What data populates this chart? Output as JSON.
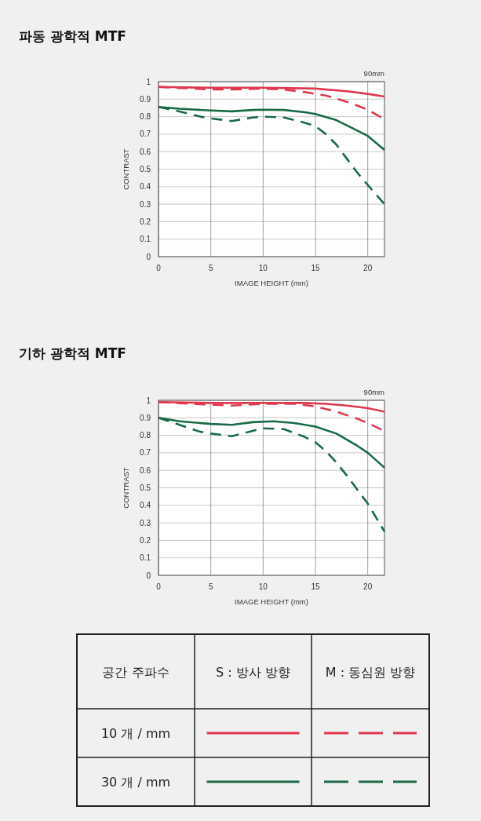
{
  "chart_data": [
    {
      "type": "line",
      "title": "파동 광학적 MTF",
      "subtitle": "90mm",
      "xlabel": "IMAGE HEIGHT (mm)",
      "ylabel": "CONTRAST",
      "xlim": [
        0,
        21.6
      ],
      "ylim": [
        0,
        1
      ],
      "xticks": [
        0,
        5,
        10,
        15,
        20
      ],
      "yticks": [
        0,
        0.1,
        0.2,
        0.3,
        0.4,
        0.5,
        0.6,
        0.7,
        0.8,
        0.9,
        1
      ],
      "grid": true,
      "series": [
        {
          "color": "#e0384f",
          "line_style": "solid",
          "x": [
            0,
            5,
            10,
            15,
            18,
            20,
            21.6
          ],
          "values": [
            0.97,
            0.965,
            0.965,
            0.96,
            0.945,
            0.93,
            0.915
          ]
        },
        {
          "color": "#e0384f",
          "line_style": "dashed",
          "x": [
            0,
            5,
            7,
            10,
            12,
            14,
            16,
            18,
            20,
            21.6
          ],
          "values": [
            0.97,
            0.955,
            0.955,
            0.96,
            0.955,
            0.94,
            0.92,
            0.885,
            0.84,
            0.785
          ]
        },
        {
          "color": "#186b46",
          "line_style": "solid",
          "x": [
            0,
            2,
            5,
            7,
            9,
            10,
            12,
            14,
            15,
            17,
            19,
            20,
            21.6
          ],
          "values": [
            0.855,
            0.845,
            0.835,
            0.83,
            0.838,
            0.84,
            0.838,
            0.825,
            0.815,
            0.78,
            0.72,
            0.69,
            0.61
          ]
        },
        {
          "color": "#186b46",
          "line_style": "dashed",
          "x": [
            0,
            2,
            4,
            5,
            7,
            9,
            10,
            12,
            14,
            15,
            16,
            17,
            18,
            19,
            20,
            21.6
          ],
          "values": [
            0.855,
            0.83,
            0.8,
            0.79,
            0.775,
            0.795,
            0.8,
            0.795,
            0.765,
            0.745,
            0.7,
            0.64,
            0.56,
            0.48,
            0.41,
            0.3
          ]
        }
      ]
    },
    {
      "type": "line",
      "title": "기하 광학적 MTF",
      "subtitle": "90mm",
      "xlabel": "IMAGE HEIGHT (mm)",
      "ylabel": "CONTRAST",
      "xlim": [
        0,
        21.6
      ],
      "ylim": [
        0,
        1
      ],
      "xticks": [
        0,
        5,
        10,
        15,
        20
      ],
      "yticks": [
        0,
        0.1,
        0.2,
        0.3,
        0.4,
        0.5,
        0.6,
        0.7,
        0.8,
        0.9,
        1
      ],
      "grid": true,
      "annotations": [
        "공간 주파수",
        "S : 방사 방향",
        "M : 동심원 방향",
        "10 개 / mm",
        "30 개 / mm"
      ],
      "series": [
        {
          "color": "#e0384f",
          "line_style": "solid",
          "x": [
            0,
            5,
            10,
            14,
            16,
            18,
            20,
            21.6
          ],
          "values": [
            0.99,
            0.985,
            0.985,
            0.985,
            0.98,
            0.97,
            0.955,
            0.935
          ]
        },
        {
          "color": "#e0384f",
          "line_style": "dashed",
          "x": [
            0,
            3,
            5,
            7,
            10,
            13,
            15,
            17,
            19,
            20,
            21.6
          ],
          "values": [
            0.99,
            0.98,
            0.975,
            0.97,
            0.98,
            0.98,
            0.965,
            0.935,
            0.895,
            0.87,
            0.825
          ]
        },
        {
          "color": "#186b46",
          "line_style": "solid",
          "x": [
            0,
            2,
            5,
            7,
            9,
            11,
            13,
            15,
            17,
            19,
            20,
            21.6
          ],
          "values": [
            0.9,
            0.88,
            0.865,
            0.86,
            0.875,
            0.88,
            0.87,
            0.85,
            0.81,
            0.74,
            0.7,
            0.615
          ]
        },
        {
          "color": "#186b46",
          "line_style": "dashed",
          "x": [
            0,
            2,
            4,
            5,
            7,
            9,
            10,
            12,
            14,
            15,
            16,
            17,
            18,
            19,
            20,
            21.6
          ],
          "values": [
            0.9,
            0.86,
            0.82,
            0.81,
            0.795,
            0.825,
            0.84,
            0.835,
            0.79,
            0.76,
            0.71,
            0.645,
            0.57,
            0.49,
            0.41,
            0.25
          ]
        }
      ]
    }
  ]
}
